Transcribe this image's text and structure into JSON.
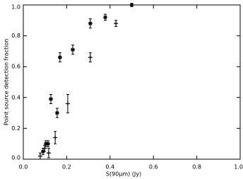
{
  "chart_data": {
    "type": "scatter",
    "x_label": "S(90μm)   (Jy)",
    "y_label": "Point source detection fraction",
    "xlim": [
      0,
      1
    ],
    "ylim": [
      0,
      1
    ],
    "xticks": [
      {
        "value": 0,
        "label": "0.0"
      },
      0.2,
      0.4,
      0.6,
      0.8,
      {
        "value": 1,
        "label": "1.0"
      }
    ],
    "yticks": [
      {
        "value": 0,
        "label": "0.0"
      },
      0.2,
      0.4,
      0.6,
      0.8,
      {
        "value": 1,
        "label": "1.0"
      }
    ],
    "color": "#000000",
    "series": [
      {
        "marker": "star",
        "x": [
          0.091,
          0.104,
          0.114,
          0.127,
          0.156,
          0.169,
          0.228,
          0.309,
          0.378,
          0.5
        ],
        "values": [
          0.05,
          0.1,
          0.1,
          0.39,
          0.3,
          0.66,
          0.71,
          0.88,
          0.92,
          1.0
        ],
        "errors": [
          0.02,
          0.02,
          0.02,
          0.03,
          0.03,
          0.03,
          0.03,
          0.03,
          0.02,
          0.01
        ]
      },
      {
        "marker": "plus",
        "x": [
          0.078,
          0.098,
          0.117,
          0.147,
          0.205,
          0.309,
          0.427
        ],
        "values": [
          0.02,
          0.07,
          0.04,
          0.14,
          0.36,
          0.66,
          0.88
        ],
        "errors": [
          0.02,
          0.02,
          0.03,
          0.04,
          0.06,
          0.03,
          0.02
        ]
      }
    ]
  }
}
